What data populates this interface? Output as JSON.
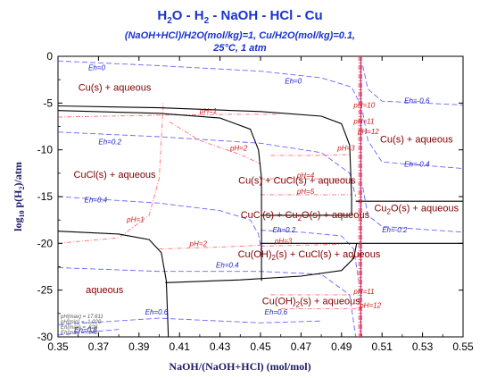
{
  "chart_data": {
    "type": "phase-diagram",
    "title_parts": {
      "h2o": "H",
      "h2o_sub": "2",
      "h2o_tail": "O - H",
      "h2_sub": "2",
      "rest": " - NaOH - HCl - Cu"
    },
    "subtitle_line1": "(NaOH+HCl)/H2O(mol/kg)=1, Cu/H2O(mol/kg)=0.1,",
    "subtitle_line2": "25°C, 1 atm",
    "xlabel": "NaOH/(NaOH+HCl) (mol/mol)",
    "ylabel_main": "log",
    "ylabel_sub": "10",
    "ylabel_tail": " p(H",
    "ylabel_sub2": "2",
    "ylabel_end": ")/atm",
    "xlim": [
      0.35,
      0.55
    ],
    "ylim": [
      -30,
      0
    ],
    "x_ticks": [
      "0.35",
      "0.37",
      "0.39",
      "0.41",
      "0.43",
      "0.45",
      "0.47",
      "0.49",
      "0.51",
      "0.53",
      "0.55"
    ],
    "y_ticks": [
      "0",
      "-5",
      "-10",
      "-15",
      "-20",
      "-25",
      "-30"
    ],
    "regions": [
      {
        "label": "Cu(s) + aqueous",
        "x": 0.378,
        "y": -3.7
      },
      {
        "label": "Cu(s) + aqueous",
        "x": 0.527,
        "y": -9.2
      },
      {
        "label": "CuCl(s) + aqueous",
        "x": 0.378,
        "y": -13.0
      },
      {
        "label": "Cu(s) + CuCl(s) + aqueous",
        "x": 0.468,
        "y": -13.6
      },
      {
        "label": "CuCl(s) + Cu2O(s) + aqueous",
        "x": 0.472,
        "y": -17.3
      },
      {
        "label": "Cu2O(s) + aqueous",
        "x": 0.527,
        "y": -16.6
      },
      {
        "label": "Cu(OH)2(s) + CuCl(s) + aqueous",
        "x": 0.474,
        "y": -21.5
      },
      {
        "label": "aqueous",
        "x": 0.373,
        "y": -25.3
      },
      {
        "label": "Cu(OH)2(s) + aqueous",
        "x": 0.475,
        "y": -26.5
      }
    ],
    "phase_boundaries": [
      {
        "name": "upper-Cu-boundary",
        "points": [
          [
            0.35,
            -5.3
          ],
          [
            0.4,
            -5.5
          ],
          [
            0.45,
            -5.9
          ],
          [
            0.48,
            -6.4
          ],
          [
            0.49,
            -7.2
          ],
          [
            0.494,
            -9.5
          ],
          [
            0.495,
            -15.0
          ],
          [
            0.495,
            -17.0
          ]
        ]
      },
      {
        "name": "inner-Cu-boundary",
        "points": [
          [
            0.35,
            -5.8
          ],
          [
            0.4,
            -6.1
          ],
          [
            0.43,
            -6.6
          ],
          [
            0.445,
            -7.8
          ],
          [
            0.449,
            -10.0
          ],
          [
            0.4505,
            -13.0
          ],
          [
            0.4505,
            -24.0
          ]
        ]
      },
      {
        "name": "aqueous-CuCl-boundary",
        "points": [
          [
            0.35,
            -18.7
          ],
          [
            0.38,
            -19.0
          ],
          [
            0.395,
            -19.6
          ],
          [
            0.401,
            -21.0
          ],
          [
            0.4035,
            -24.0
          ],
          [
            0.4045,
            -30.0
          ]
        ]
      },
      {
        "name": "cu2o-boundary",
        "points": [
          [
            0.403,
            -24.2
          ],
          [
            0.44,
            -23.9
          ],
          [
            0.47,
            -23.5
          ],
          [
            0.49,
            -22.9
          ],
          [
            0.496,
            -21.6
          ],
          [
            0.4975,
            -20.0
          ]
        ]
      },
      {
        "name": "line-y-15-5",
        "points": [
          [
            0.497,
            -15.5
          ],
          [
            0.55,
            -15.5
          ]
        ]
      },
      {
        "name": "line-y-20",
        "points": [
          [
            0.45,
            -20.0
          ],
          [
            0.55,
            -20.0
          ]
        ]
      },
      {
        "name": "line-y-17",
        "points": [
          [
            0.45,
            -17.0
          ],
          [
            0.495,
            -17.0
          ]
        ]
      },
      {
        "name": "vertical-0-5",
        "points": [
          [
            0.4995,
            0
          ],
          [
            0.4995,
            -30
          ]
        ]
      }
    ],
    "eh_lines": [
      {
        "label": "Eh=0",
        "lx": 0.365,
        "ly": -1.5,
        "points": [
          [
            0.35,
            -0.5
          ],
          [
            0.4,
            -1.0
          ],
          [
            0.45,
            -1.6
          ],
          [
            0.48,
            -2.3
          ],
          [
            0.495,
            -3.3
          ],
          [
            0.499,
            -5.0
          ]
        ]
      },
      {
        "label": "Eh=0",
        "lx": 0.462,
        "ly": -2.9,
        "points": []
      },
      {
        "label": "Eh=-0.6",
        "lx": 0.521,
        "ly": -5.0,
        "points": [
          [
            0.5005,
            -1.0
          ],
          [
            0.503,
            -3.5
          ],
          [
            0.51,
            -4.8
          ],
          [
            0.55,
            -5.2
          ]
        ]
      },
      {
        "label": "Eh=0.2",
        "lx": 0.37,
        "ly": -9.4,
        "points": [
          [
            0.35,
            -8.1
          ],
          [
            0.4,
            -8.6
          ],
          [
            0.45,
            -9.3
          ],
          [
            0.48,
            -10.3
          ],
          [
            0.494,
            -12.5
          ],
          [
            0.497,
            -15.0
          ]
        ]
      },
      {
        "label": "Eh=-0.4",
        "lx": 0.521,
        "ly": -11.8,
        "points": [
          [
            0.5005,
            -6.0
          ],
          [
            0.503,
            -9.0
          ],
          [
            0.51,
            -11.3
          ],
          [
            0.55,
            -12.0
          ]
        ]
      },
      {
        "label": "Eh=0.4",
        "lx": 0.363,
        "ly": -15.6,
        "points": [
          [
            0.35,
            -15.0
          ],
          [
            0.4,
            -15.7
          ],
          [
            0.43,
            -16.5
          ],
          [
            0.445,
            -17.5
          ],
          [
            0.449,
            -19.0
          ],
          [
            0.4505,
            -21.0
          ]
        ]
      },
      {
        "label": "Eh=0.2",
        "lx": 0.456,
        "ly": -18.8,
        "points": [
          [
            0.45,
            -18.6
          ],
          [
            0.47,
            -18.8
          ],
          [
            0.49,
            -19.2
          ],
          [
            0.496,
            -20.6
          ],
          [
            0.4985,
            -24.0
          ]
        ]
      },
      {
        "label": "Eh=-0.2",
        "lx": 0.51,
        "ly": -18.8,
        "points": [
          [
            0.5005,
            -14.0
          ],
          [
            0.503,
            -17.0
          ],
          [
            0.51,
            -18.2
          ],
          [
            0.55,
            -18.8
          ]
        ]
      },
      {
        "label": "Eh=0.4",
        "lx": 0.428,
        "ly": -22.6,
        "points": [
          [
            0.35,
            -22.6
          ],
          [
            0.4,
            -23.0
          ],
          [
            0.43,
            -23.0
          ],
          [
            0.45,
            -23.0
          ],
          [
            0.48,
            -23.3
          ],
          [
            0.494,
            -25.5
          ],
          [
            0.497,
            -30.0
          ]
        ]
      },
      {
        "label": "Eh=0.6",
        "lx": 0.393,
        "ly": -27.6,
        "points": [
          [
            0.35,
            -28.7
          ],
          [
            0.4,
            -28.0
          ],
          [
            0.45,
            -28.5
          ],
          [
            0.48,
            -28.3
          ]
        ]
      },
      {
        "label": "Eh=0.6",
        "lx": 0.452,
        "ly": -27.6,
        "points": []
      },
      {
        "label": "Eh=0.8",
        "lx": 0.358,
        "ly": -29.5,
        "points": [
          [
            0.35,
            -29.8
          ],
          [
            0.38,
            -29.2
          ]
        ]
      }
    ],
    "ph_lines": [
      {
        "label": "pH=1",
        "lx": 0.42,
        "ly": -6.1,
        "points": [
          [
            0.35,
            -6.5
          ],
          [
            0.4,
            -6.3
          ],
          [
            0.44,
            -6.2
          ],
          [
            0.46,
            -6.2
          ]
        ]
      },
      {
        "label": "pH=2",
        "lx": 0.435,
        "ly": -10.1,
        "points": [
          [
            0.405,
            -7.0
          ],
          [
            0.42,
            -9.0
          ],
          [
            0.44,
            -10.5
          ],
          [
            0.45,
            -11.5
          ]
        ]
      },
      {
        "label": "pH=3",
        "lx": 0.488,
        "ly": -10.1,
        "points": [
          [
            0.455,
            -10.6
          ],
          [
            0.48,
            -10.6
          ],
          [
            0.494,
            -10.5
          ]
        ]
      },
      {
        "label": "pH=4",
        "lx": 0.468,
        "ly": -13.0,
        "points": [
          [
            0.45,
            -13.1
          ],
          [
            0.48,
            -13.1
          ],
          [
            0.495,
            -13.1
          ]
        ]
      },
      {
        "label": "pH=5",
        "lx": 0.468,
        "ly": -14.7,
        "points": [
          [
            0.45,
            -14.8
          ],
          [
            0.48,
            -14.8
          ],
          [
            0.495,
            -14.8
          ]
        ]
      },
      {
        "label": "pH=10",
        "lx": 0.496,
        "ly": -5.5,
        "points": [
          [
            0.4985,
            0
          ],
          [
            0.4985,
            -30
          ]
        ]
      },
      {
        "label": "pH=11",
        "lx": 0.496,
        "ly": -7.2,
        "points": [
          [
            0.499,
            0
          ],
          [
            0.499,
            -30
          ]
        ]
      },
      {
        "label": "pH=12",
        "lx": 0.498,
        "ly": -8.3,
        "points": [
          [
            0.5,
            0
          ],
          [
            0.5,
            -30
          ]
        ]
      },
      {
        "label": "pH=1",
        "lx": 0.384,
        "ly": -17.7,
        "points": [
          [
            0.35,
            -20.0
          ],
          [
            0.38,
            -19.4
          ],
          [
            0.395,
            -17.0
          ],
          [
            0.4,
            -13.0
          ],
          [
            0.402,
            -5.0
          ]
        ]
      },
      {
        "label": "pH=2",
        "lx": 0.415,
        "ly": -20.3,
        "points": [
          [
            0.4,
            -20.6
          ],
          [
            0.43,
            -20.4
          ],
          [
            0.45,
            -20.2
          ]
        ]
      },
      {
        "label": "pH=3",
        "lx": 0.457,
        "ly": -20.0,
        "points": [
          [
            0.45,
            -20.3
          ],
          [
            0.47,
            -20.2
          ],
          [
            0.49,
            -20.1
          ]
        ]
      },
      {
        "label": "pH=11",
        "lx": 0.496,
        "ly": -25.4,
        "points": [
          [
            0.455,
            -25.5
          ],
          [
            0.48,
            -25.5
          ],
          [
            0.495,
            -25.5
          ]
        ]
      },
      {
        "label": "pH=12",
        "lx": 0.499,
        "ly": -26.9,
        "points": [
          [
            0.46,
            -27.0
          ],
          [
            0.48,
            -27.0
          ],
          [
            0.498,
            -27.0
          ]
        ]
      }
    ],
    "legend_notes": [
      "pH(max) = 17.611",
      "pH(min) = -1.020",
      "Eh(max) = .828",
      "Eh(min) = -.842"
    ],
    "colors": {
      "boundary": "#000000",
      "eh": "#3333ff",
      "ph": "#ff3333",
      "region": "#800000",
      "title": "#1a33cc",
      "axis": "#1a1a66"
    }
  }
}
